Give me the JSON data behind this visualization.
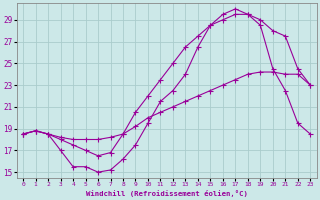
{
  "xlabel": "Windchill (Refroidissement éolien,°C)",
  "bg_color": "#cce8e8",
  "line_color": "#990099",
  "grid_color": "#aacccc",
  "xlim": [
    -0.5,
    23.5
  ],
  "ylim": [
    14.5,
    30.5
  ],
  "xticks": [
    0,
    1,
    2,
    3,
    4,
    5,
    6,
    7,
    8,
    9,
    10,
    11,
    12,
    13,
    14,
    15,
    16,
    17,
    18,
    19,
    20,
    21,
    22,
    23
  ],
  "yticks": [
    15,
    17,
    19,
    21,
    23,
    25,
    27,
    29
  ],
  "line1_x": [
    0,
    1,
    2,
    3,
    4,
    5,
    6,
    7,
    8,
    9,
    10,
    11,
    12,
    13,
    14,
    15,
    16,
    17,
    18,
    19,
    20,
    21,
    22,
    23
  ],
  "line1_y": [
    18.5,
    18.8,
    18.5,
    17.0,
    15.5,
    15.5,
    15.0,
    15.2,
    16.2,
    17.5,
    19.5,
    21.5,
    22.5,
    24.0,
    26.5,
    28.5,
    29.5,
    30.0,
    29.5,
    28.5,
    24.5,
    22.5,
    19.5,
    18.5
  ],
  "line2_x": [
    0,
    1,
    2,
    3,
    4,
    5,
    6,
    7,
    8,
    9,
    10,
    11,
    12,
    13,
    14,
    15,
    16,
    17,
    18,
    19,
    20,
    21,
    22,
    23
  ],
  "line2_y": [
    18.5,
    18.8,
    18.5,
    18.0,
    17.5,
    17.0,
    16.5,
    16.8,
    18.5,
    20.5,
    22.0,
    23.5,
    25.0,
    26.5,
    27.5,
    28.5,
    29.0,
    29.5,
    29.5,
    29.0,
    28.0,
    27.5,
    24.5,
    23.0
  ],
  "line3_x": [
    0,
    1,
    2,
    3,
    4,
    5,
    6,
    7,
    8,
    9,
    10,
    11,
    12,
    13,
    14,
    15,
    16,
    17,
    18,
    19,
    20,
    21,
    22,
    23
  ],
  "line3_y": [
    18.5,
    18.8,
    18.5,
    18.2,
    18.0,
    18.0,
    18.0,
    18.2,
    18.5,
    19.2,
    20.0,
    20.5,
    21.0,
    21.5,
    22.0,
    22.5,
    23.0,
    23.5,
    24.0,
    24.2,
    24.2,
    24.0,
    24.0,
    23.0
  ]
}
